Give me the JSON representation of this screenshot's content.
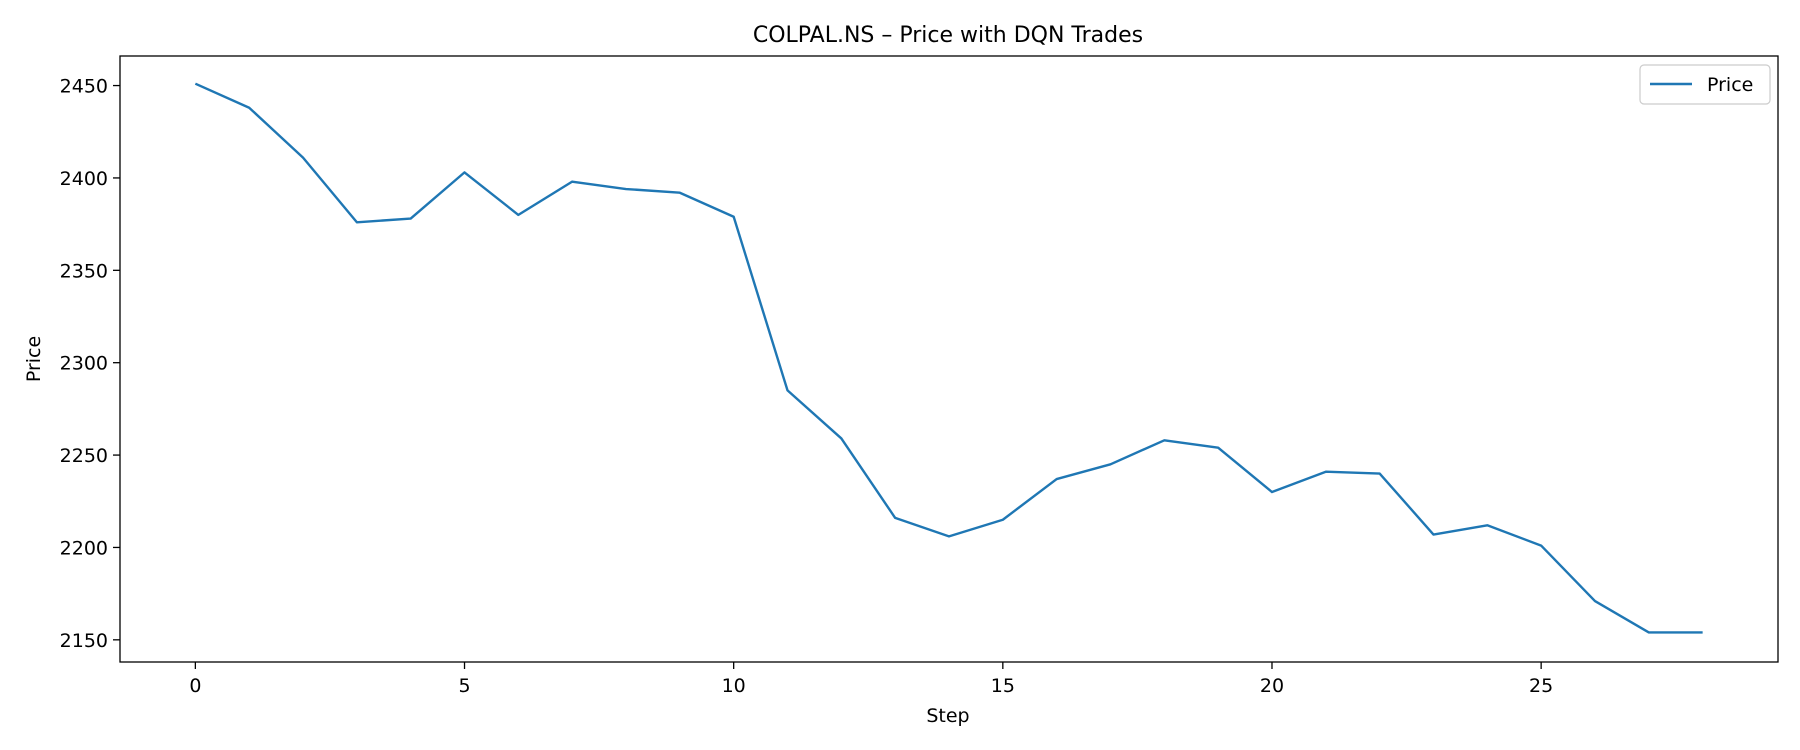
{
  "chart_data": {
    "type": "line",
    "title": "COLPAL.NS – Price with DQN Trades",
    "xlabel": "Step",
    "ylabel": "Price",
    "xlim": [
      -1.4,
      29.4
    ],
    "ylim": [
      2138,
      2466
    ],
    "xticks": [
      0,
      5,
      10,
      15,
      20,
      25
    ],
    "yticks": [
      2150,
      2200,
      2250,
      2300,
      2350,
      2400,
      2450
    ],
    "grid": false,
    "legend_position": "top-right",
    "series": [
      {
        "name": "Price",
        "color": "#1f77b4",
        "x": [
          0,
          1,
          2,
          3,
          4,
          5,
          6,
          7,
          8,
          9,
          10,
          11,
          12,
          13,
          14,
          15,
          16,
          17,
          18,
          19,
          20,
          21,
          22,
          23,
          24,
          25,
          26,
          27,
          28
        ],
        "y": [
          2451,
          2438,
          2411,
          2376,
          2378,
          2403,
          2380,
          2398,
          2394,
          2392,
          2379,
          2285,
          2259,
          2216,
          2206,
          2215,
          2237,
          2245,
          2258,
          2254,
          2230,
          2241,
          2240,
          2207,
          2212,
          2201,
          2171,
          2154,
          2154
        ]
      }
    ]
  }
}
